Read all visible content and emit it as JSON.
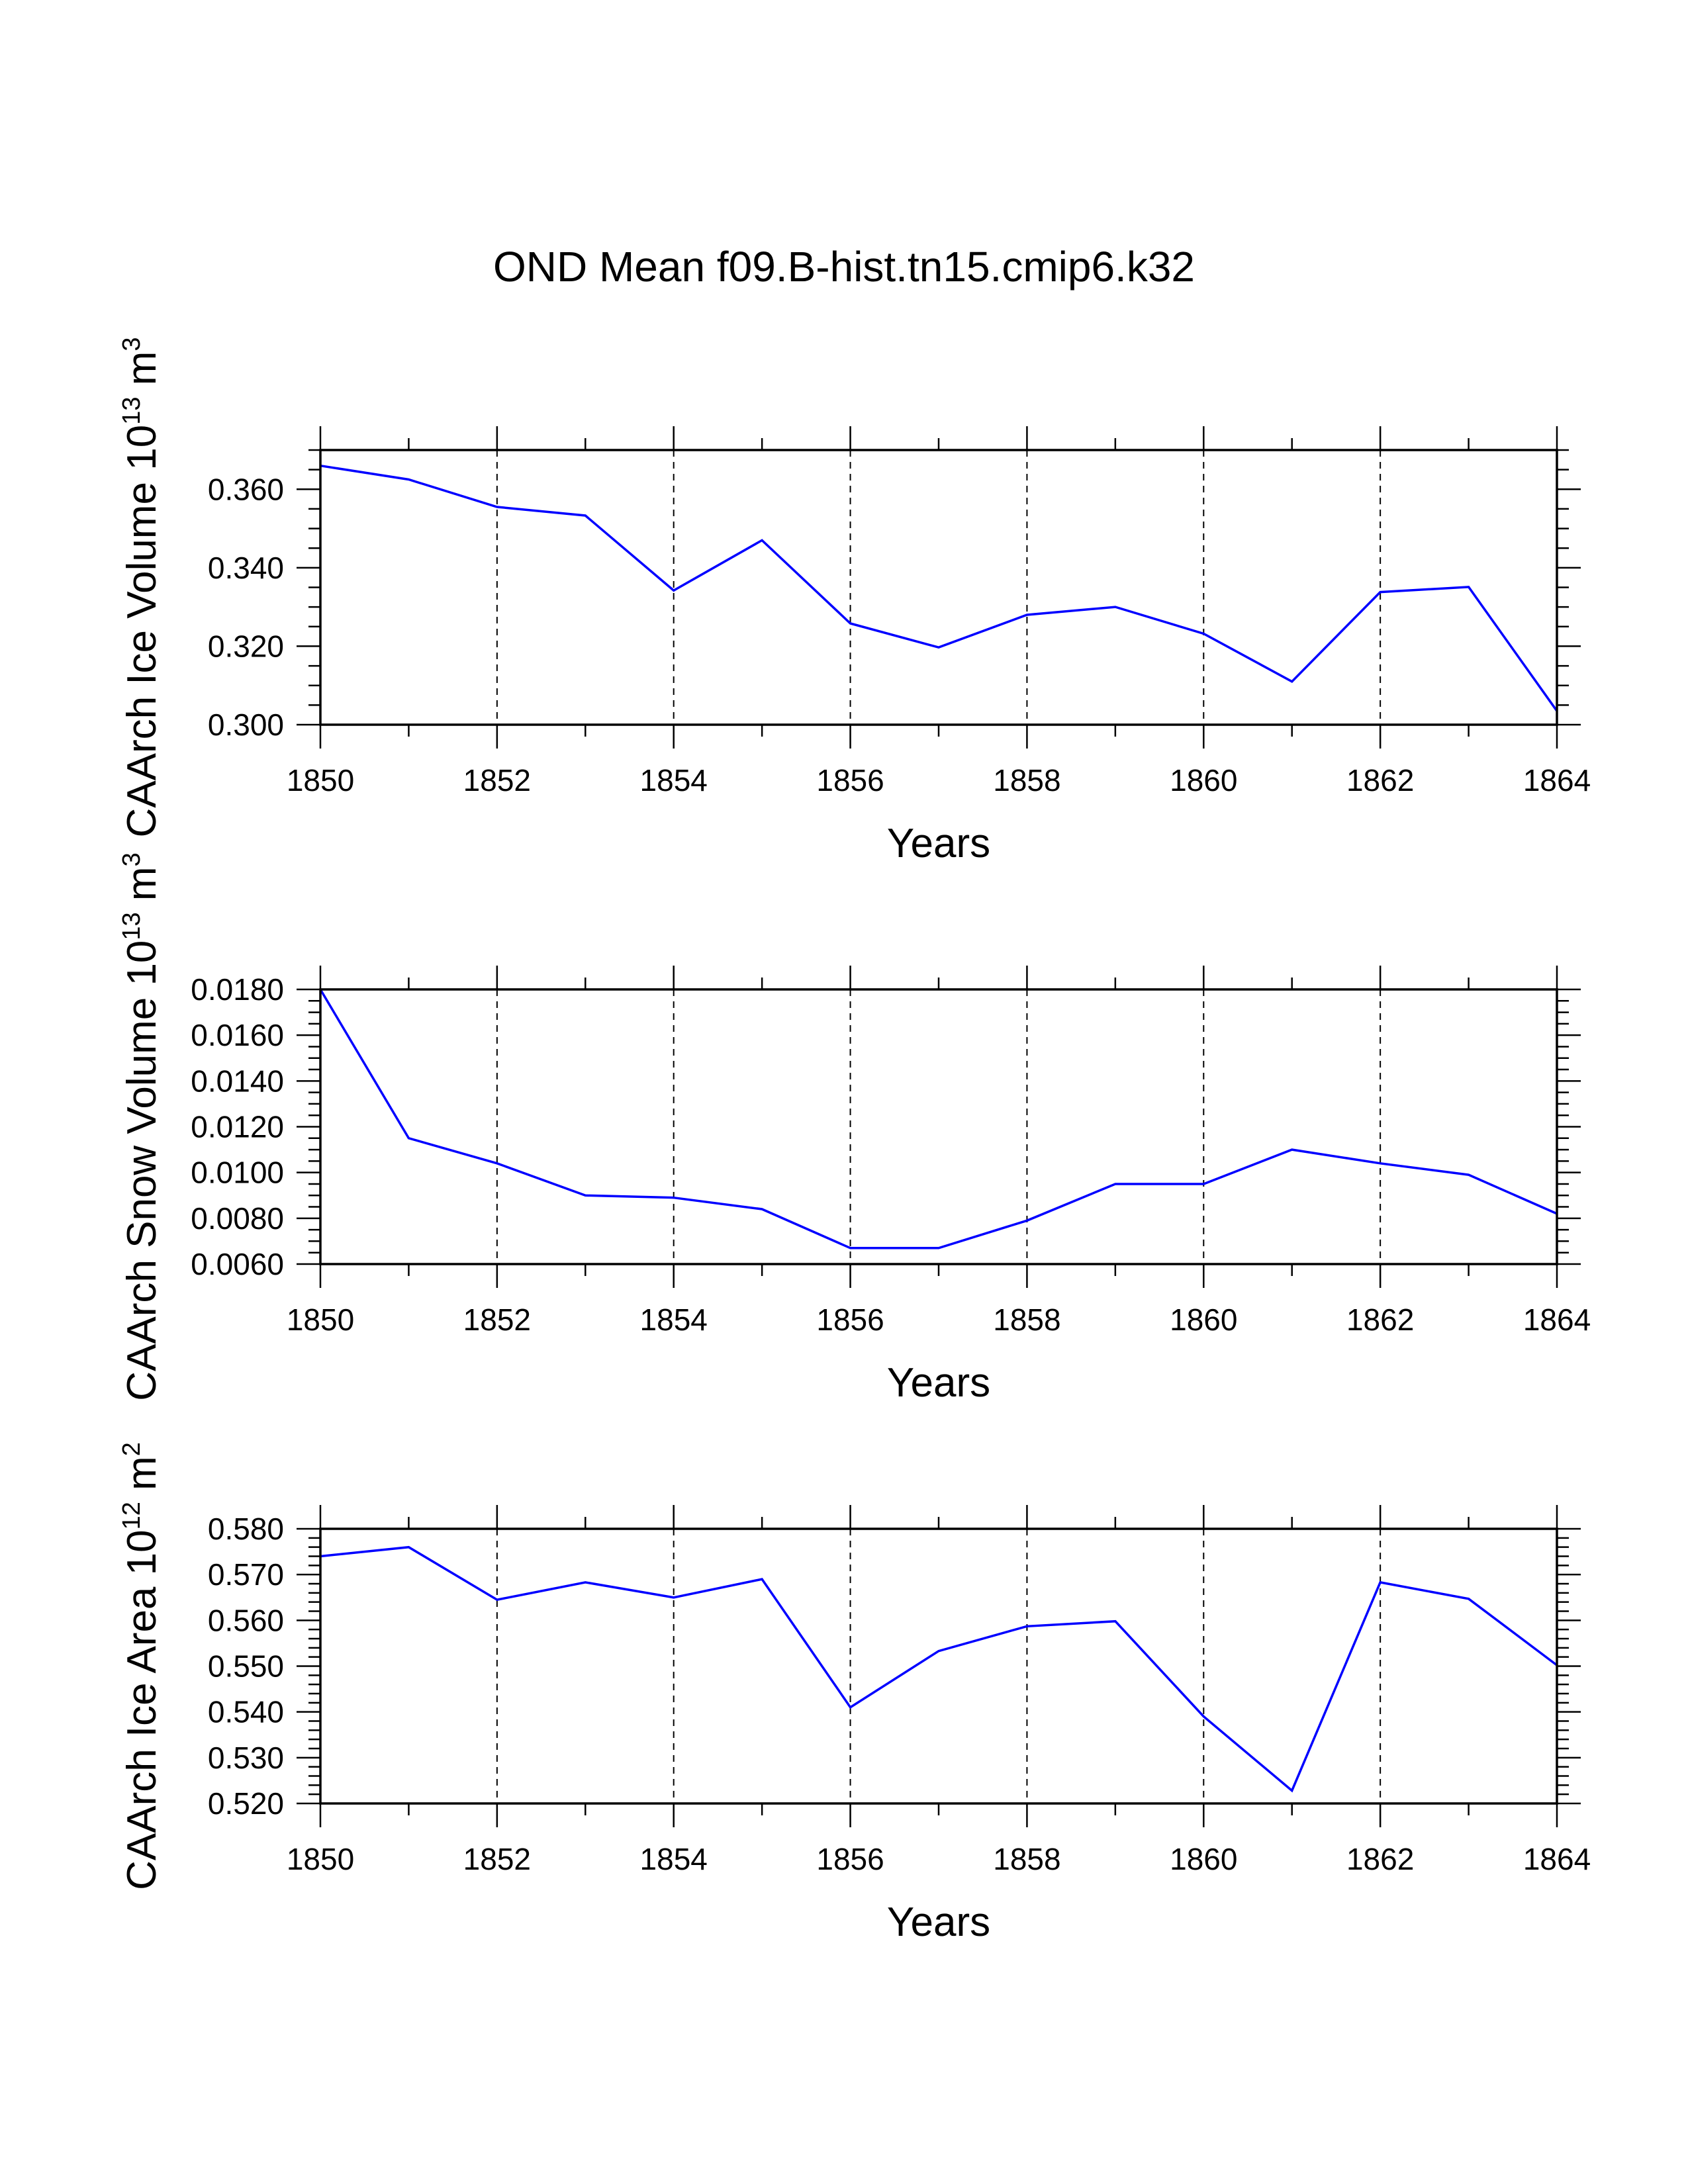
{
  "title": "OND Mean f09.B-hist.tn15.cmip6.k32",
  "colors": {
    "line": "#0000ff",
    "axis": "#000000",
    "grid": "#000000",
    "background": "#ffffff"
  },
  "chart_data": [
    {
      "type": "line",
      "ylabel": {
        "main": "CAArch Ice Volume 10",
        "exp": "13",
        "unit": " m",
        "unit_exp": "3"
      },
      "xlabel": "Years",
      "x": [
        1850,
        1851,
        1852,
        1853,
        1854,
        1855,
        1856,
        1857,
        1858,
        1859,
        1860,
        1861,
        1862,
        1863,
        1864
      ],
      "values": [
        0.366,
        0.3625,
        0.3555,
        0.3533,
        0.3342,
        0.347,
        0.3258,
        0.3197,
        0.328,
        0.33,
        0.3232,
        0.311,
        0.3338,
        0.3351,
        0.3035
      ],
      "xlim": [
        1850,
        1864
      ],
      "xticks": [
        "1850",
        "1852",
        "1854",
        "1856",
        "1858",
        "1860",
        "1862",
        "1864"
      ],
      "ylim": [
        0.3,
        0.37
      ],
      "yticks": [
        "0.300",
        "0.320",
        "0.340",
        "0.360"
      ],
      "ymajor_step": 0.02,
      "yminor_step": 0.005,
      "grid": "vertical dashed at major x ticks"
    },
    {
      "type": "line",
      "ylabel": {
        "main": "CAArch Snow Volume 10",
        "exp": "13",
        "unit": " m",
        "unit_exp": "3"
      },
      "xlabel": "Years",
      "x": [
        1850,
        1851,
        1852,
        1853,
        1854,
        1855,
        1856,
        1857,
        1858,
        1859,
        1860,
        1861,
        1862,
        1863,
        1864
      ],
      "values": [
        0.018,
        0.0115,
        0.0104,
        0.009,
        0.0089,
        0.0084,
        0.0067,
        0.0067,
        0.0079,
        0.0095,
        0.0095,
        0.011,
        0.0104,
        0.0099,
        0.0082
      ],
      "xlim": [
        1850,
        1864
      ],
      "xticks": [
        "1850",
        "1852",
        "1854",
        "1856",
        "1858",
        "1860",
        "1862",
        "1864"
      ],
      "ylim": [
        0.006,
        0.018
      ],
      "yticks": [
        "0.0060",
        "0.0080",
        "0.0100",
        "0.0120",
        "0.0140",
        "0.0160",
        "0.0180"
      ],
      "ymajor_step": 0.002,
      "yminor_step": 0.0005,
      "grid": "vertical dashed at major x ticks"
    },
    {
      "type": "line",
      "ylabel": {
        "main": "CAArch Ice Area 10",
        "exp": "12",
        "unit": " m",
        "unit_exp": "2"
      },
      "xlabel": "Years",
      "x": [
        1850,
        1851,
        1852,
        1853,
        1854,
        1855,
        1856,
        1857,
        1858,
        1859,
        1860,
        1861,
        1862,
        1863,
        1864
      ],
      "values": [
        0.574,
        0.576,
        0.5645,
        0.5683,
        0.565,
        0.569,
        0.541,
        0.5533,
        0.5587,
        0.5598,
        0.539,
        0.5228,
        0.5683,
        0.5647,
        0.5502
      ],
      "xlim": [
        1850,
        1864
      ],
      "xticks": [
        "1850",
        "1852",
        "1854",
        "1856",
        "1858",
        "1860",
        "1862",
        "1864"
      ],
      "ylim": [
        0.52,
        0.58
      ],
      "yticks": [
        "0.520",
        "0.530",
        "0.540",
        "0.550",
        "0.560",
        "0.570",
        "0.580"
      ],
      "ymajor_step": 0.01,
      "yminor_step": 0.002,
      "grid": "vertical dashed at major x ticks"
    }
  ]
}
